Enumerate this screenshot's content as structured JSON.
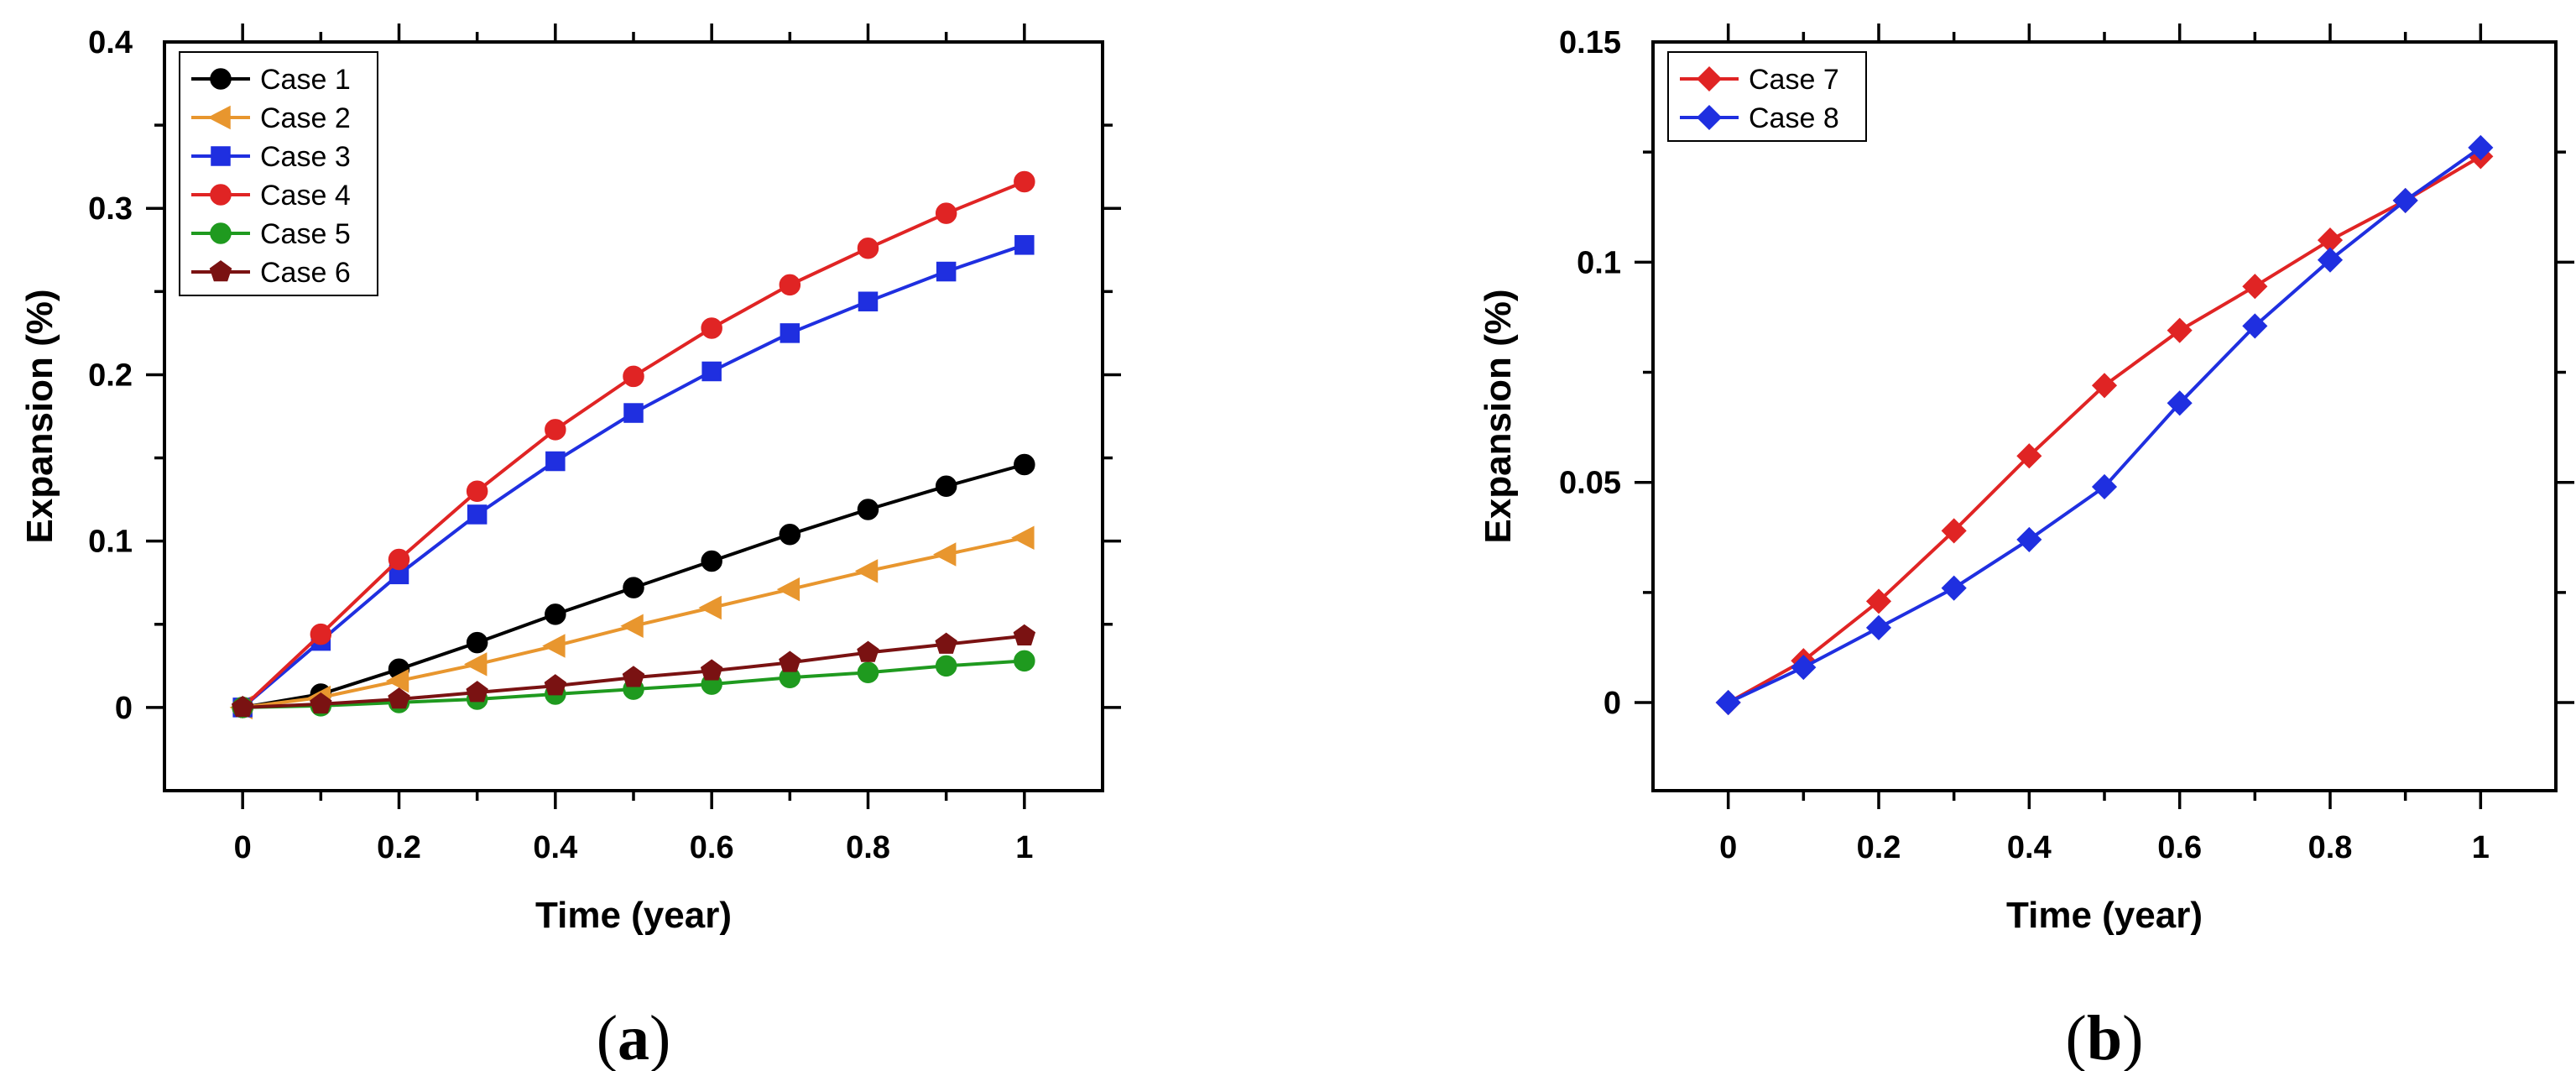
{
  "chart_data": [
    {
      "type": "line",
      "panel_label": {
        "open": "(",
        "letter": "a",
        "close": ")"
      },
      "xlabel": "Time (year)",
      "ylabel": "Expansion (%)",
      "xlim": [
        -0.1,
        1.1
      ],
      "ylim": [
        -0.05,
        0.4
      ],
      "xticks": [
        0,
        0.2,
        0.4,
        0.6,
        0.8,
        1
      ],
      "xtick_labels": [
        "0",
        "0.2",
        "0.4",
        "0.6",
        "0.8",
        "1"
      ],
      "yticks": [
        0,
        0.1,
        0.2,
        0.3,
        0.4
      ],
      "ytick_labels": [
        "0",
        "0.1",
        "0.2",
        "0.3",
        "0.4"
      ],
      "legend_position": "top-left",
      "x": [
        0,
        0.1,
        0.2,
        0.3,
        0.4,
        0.5,
        0.6,
        0.7,
        0.8,
        0.9,
        1.0
      ],
      "series": [
        {
          "name": "Case 1",
          "color": "#000000",
          "marker": "circle",
          "values": [
            0,
            0.008,
            0.023,
            0.039,
            0.056,
            0.072,
            0.088,
            0.104,
            0.119,
            0.133,
            0.146
          ]
        },
        {
          "name": "Case 2",
          "color": "#e8962e",
          "marker": "triangle-left",
          "values": [
            0,
            0.006,
            0.016,
            0.026,
            0.037,
            0.049,
            0.06,
            0.071,
            0.082,
            0.092,
            0.102
          ]
        },
        {
          "name": "Case 3",
          "color": "#1f2fe0",
          "marker": "square",
          "values": [
            0,
            0.04,
            0.08,
            0.116,
            0.148,
            0.177,
            0.202,
            0.225,
            0.244,
            0.262,
            0.278
          ]
        },
        {
          "name": "Case 4",
          "color": "#e02424",
          "marker": "circle",
          "values": [
            0,
            0.044,
            0.089,
            0.13,
            0.167,
            0.199,
            0.228,
            0.254,
            0.276,
            0.297,
            0.316
          ]
        },
        {
          "name": "Case 5",
          "color": "#1f9a1f",
          "marker": "circle",
          "values": [
            0,
            0.001,
            0.003,
            0.005,
            0.008,
            0.011,
            0.014,
            0.018,
            0.021,
            0.025,
            0.028
          ]
        },
        {
          "name": "Case 6",
          "color": "#7a1212",
          "marker": "pentagon",
          "values": [
            0,
            0.002,
            0.005,
            0.009,
            0.013,
            0.018,
            0.022,
            0.027,
            0.033,
            0.038,
            0.043
          ]
        }
      ]
    },
    {
      "type": "line",
      "panel_label": {
        "open": "(",
        "letter": "b",
        "close": ")"
      },
      "xlabel": "Time (year)",
      "ylabel": "Expansion (%)",
      "xlim": [
        -0.1,
        1.1
      ],
      "ylim": [
        -0.02,
        0.15
      ],
      "xticks": [
        0,
        0.2,
        0.4,
        0.6,
        0.8,
        1
      ],
      "xtick_labels": [
        "0",
        "0.2",
        "0.4",
        "0.6",
        "0.8",
        "1"
      ],
      "yticks": [
        0,
        0.05,
        0.1,
        0.15
      ],
      "ytick_labels": [
        "0",
        "0.05",
        "0.1",
        "0.15"
      ],
      "legend_position": "top-left",
      "x": [
        0,
        0.1,
        0.2,
        0.3,
        0.4,
        0.5,
        0.6,
        0.7,
        0.8,
        0.9,
        1.0
      ],
      "series": [
        {
          "name": "Case 7",
          "color": "#e02424",
          "marker": "diamond",
          "values": [
            0,
            0.0095,
            0.023,
            0.039,
            0.056,
            0.072,
            0.0845,
            0.0945,
            0.105,
            0.114,
            0.124
          ]
        },
        {
          "name": "Case 8",
          "color": "#1f2fe0",
          "marker": "diamond",
          "values": [
            0,
            0.008,
            0.017,
            0.026,
            0.037,
            0.049,
            0.068,
            0.0855,
            0.1005,
            0.114,
            0.126
          ]
        }
      ]
    }
  ]
}
